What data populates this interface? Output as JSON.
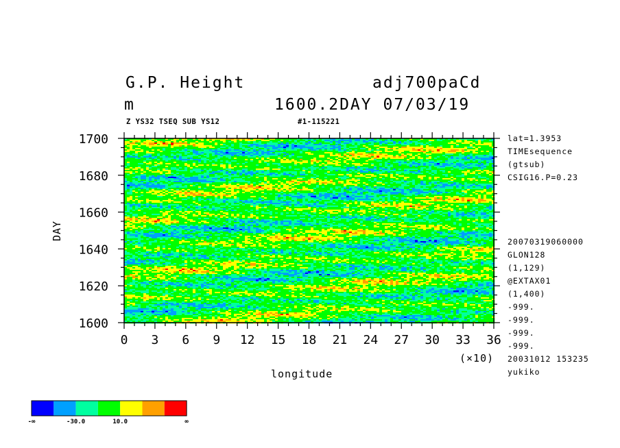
{
  "header": {
    "title_left": "G.P. Height",
    "title_right": "adj700paCd",
    "unit": "m",
    "time_info": "1600.2DAY 07/03/19",
    "sub_left": "Z YS32 TSEQ SUB YS12",
    "sub_right": "#1-115221"
  },
  "side_notes_top": [
    "lat=1.3953",
    "TIMEsequence",
    "(gtsub)",
    "CSIG16.P=0.23"
  ],
  "side_notes_bottom": [
    "20070319060000",
    "GLON128",
    "(1,129)",
    "@EXTAX01",
    "(1,400)",
    "-999.",
    "-999.",
    "-999.",
    "-999.",
    "20031012 153235",
    "yukiko"
  ],
  "colors": {
    "levels": [
      "#0000ff",
      "#00a0ff",
      "#00ffa0",
      "#00ff00",
      "#ffff00",
      "#ffa000",
      "#ff0000"
    ]
  },
  "chart_data": {
    "type": "heatmap",
    "title": "G.P. Height",
    "xlabel": "longitude",
    "ylabel": "DAY",
    "x_scale_label": "(×10)",
    "xlim": [
      0,
      36
    ],
    "ylim": [
      1600,
      1700
    ],
    "x_ticks": [
      "0",
      "3",
      "6",
      "9",
      "12",
      "15",
      "18",
      "21",
      "24",
      "27",
      "30",
      "33",
      "36"
    ],
    "y_ticks": [
      "1600",
      "1620",
      "1640",
      "1660",
      "1680",
      "1700"
    ],
    "colorbar_labels": [
      "-∞",
      "-30.0",
      "10.0",
      "∞"
    ],
    "grid": false
  }
}
